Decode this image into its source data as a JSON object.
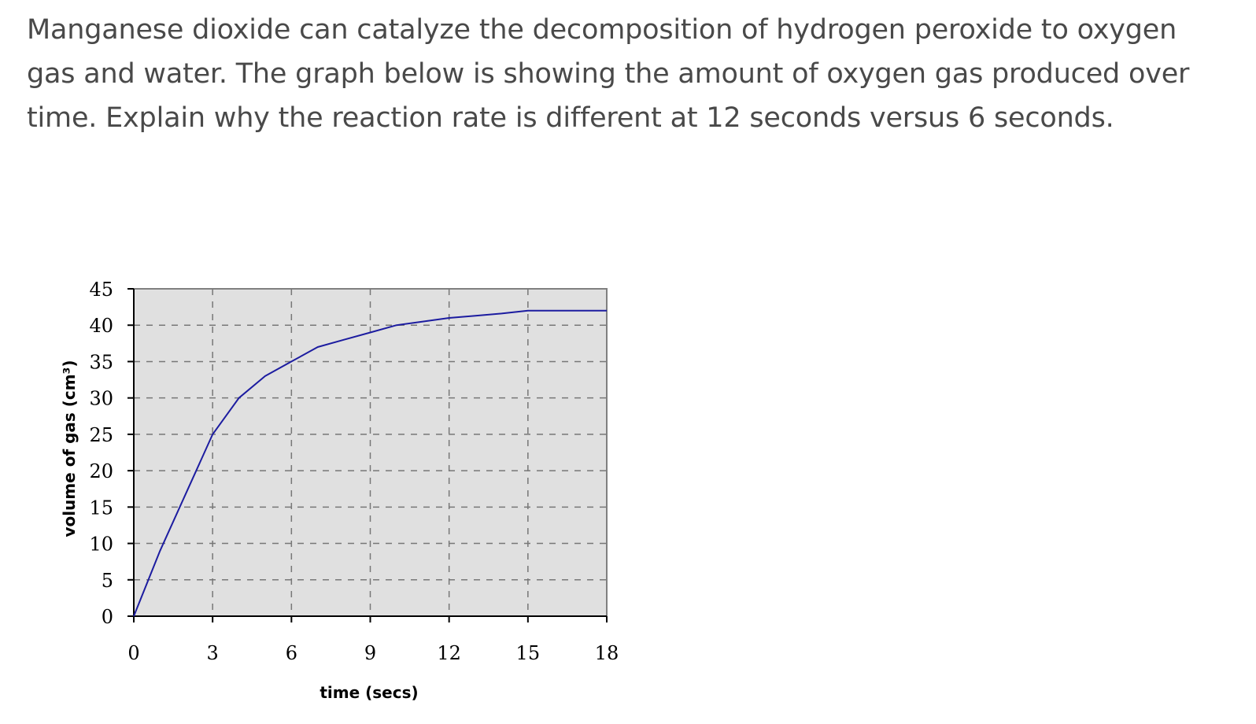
{
  "question": {
    "line1": "Manganese dioxide can catalyze the decomposition of hydrogen peroxide to oxygen",
    "line2": "gas and water.  The graph below is showing the amount of oxygen gas produced over",
    "line3": "time.  Explain why the reaction rate is different at 12 seconds versus 6 seconds."
  },
  "chart_data": {
    "type": "line",
    "title": "",
    "xlabel": "time (secs)",
    "ylabel": "volume of gas (cm³)",
    "xlim": [
      0,
      18
    ],
    "ylim": [
      0,
      45
    ],
    "xticks": [
      0,
      3,
      6,
      9,
      12,
      15,
      18
    ],
    "yticks": [
      0,
      5,
      10,
      15,
      20,
      25,
      30,
      35,
      40,
      45
    ],
    "grid": true,
    "grid_style": "dashed",
    "plot_background": "#e0e0e0",
    "series_color": "#1c1ca0",
    "series": [
      {
        "x": [
          0,
          1,
          2,
          3,
          4,
          5,
          6,
          7,
          8,
          9,
          10,
          11,
          12,
          13,
          14,
          15,
          16,
          17,
          18
        ],
        "values": [
          0,
          9,
          17,
          25,
          30,
          33,
          35,
          37,
          38,
          39,
          40,
          40.5,
          41,
          41.3,
          41.6,
          42,
          42,
          42,
          42
        ]
      }
    ]
  }
}
